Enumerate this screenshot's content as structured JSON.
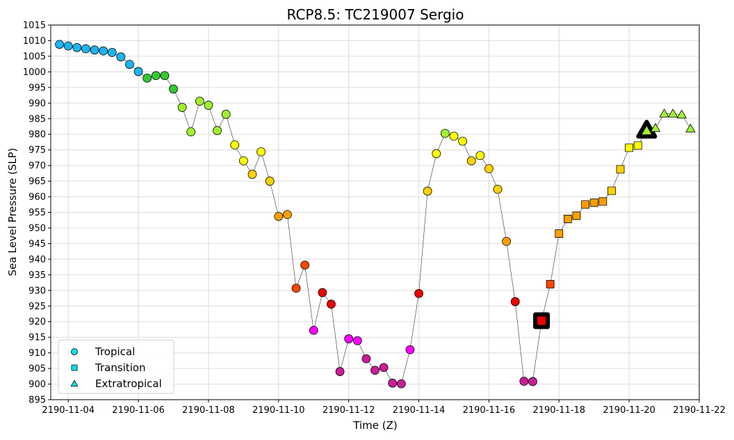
{
  "chart_data": {
    "type": "scatter",
    "title": "RCP8.5: TC219007 Sergio",
    "xlabel": "Time (Z)",
    "ylabel": "Sea Level Pressure (SLP)",
    "x_tick_labels": [
      "2190-11-04",
      "2190-11-06",
      "2190-11-08",
      "2190-11-10",
      "2190-11-12",
      "2190-11-14",
      "2190-11-16",
      "2190-11-18",
      "2190-11-20",
      "2190-11-22"
    ],
    "x_range": [
      "2190-11-03 12:00",
      "2190-11-22 00:00"
    ],
    "ylim": [
      895,
      1015
    ],
    "y_ticks": [
      895,
      900,
      905,
      910,
      915,
      920,
      925,
      930,
      935,
      940,
      945,
      950,
      955,
      960,
      965,
      970,
      975,
      980,
      985,
      990,
      995,
      1000,
      1005,
      1010,
      1015
    ],
    "grid": true,
    "legend": {
      "placement": "lower-left",
      "entries": [
        {
          "label": "Tropical",
          "marker": "circle",
          "color": "#00e5ee"
        },
        {
          "label": "Transition",
          "marker": "square",
          "color": "#00e5ee"
        },
        {
          "label": "Extratropical",
          "marker": "triangle",
          "color": "#00e5ee"
        }
      ]
    },
    "points": [
      {
        "t": "2190-11-03 18:00",
        "slp": 1008.8,
        "phase": "tropical",
        "color": "#1eb4f0"
      },
      {
        "t": "2190-11-04 00:00",
        "slp": 1008.3,
        "phase": "tropical",
        "color": "#1eb4f0"
      },
      {
        "t": "2190-11-04 06:00",
        "slp": 1007.8,
        "phase": "tropical",
        "color": "#1eb4f0"
      },
      {
        "t": "2190-11-04 12:00",
        "slp": 1007.4,
        "phase": "tropical",
        "color": "#1eb4f0"
      },
      {
        "t": "2190-11-04 18:00",
        "slp": 1007.0,
        "phase": "tropical",
        "color": "#1eb4f0"
      },
      {
        "t": "2190-11-05 00:00",
        "slp": 1006.7,
        "phase": "tropical",
        "color": "#1eb4f0"
      },
      {
        "t": "2190-11-05 06:00",
        "slp": 1006.2,
        "phase": "tropical",
        "color": "#1eb4f0"
      },
      {
        "t": "2190-11-05 12:00",
        "slp": 1004.8,
        "phase": "tropical",
        "color": "#1eb4f0"
      },
      {
        "t": "2190-11-05 18:00",
        "slp": 1002.4,
        "phase": "tropical",
        "color": "#1eb4f0"
      },
      {
        "t": "2190-11-06 00:00",
        "slp": 1000.1,
        "phase": "tropical",
        "color": "#1eb4f0"
      },
      {
        "t": "2190-11-06 06:00",
        "slp": 998.0,
        "phase": "tropical",
        "color": "#32c832"
      },
      {
        "t": "2190-11-06 12:00",
        "slp": 998.8,
        "phase": "tropical",
        "color": "#32c832"
      },
      {
        "t": "2190-11-06 18:00",
        "slp": 998.8,
        "phase": "tropical",
        "color": "#32c832"
      },
      {
        "t": "2190-11-07 00:00",
        "slp": 994.5,
        "phase": "tropical",
        "color": "#32c832"
      },
      {
        "t": "2190-11-07 06:00",
        "slp": 988.6,
        "phase": "tropical",
        "color": "#a0f032"
      },
      {
        "t": "2190-11-07 12:00",
        "slp": 980.8,
        "phase": "tropical",
        "color": "#a0f032"
      },
      {
        "t": "2190-11-07 18:00",
        "slp": 990.6,
        "phase": "tropical",
        "color": "#a0f032"
      },
      {
        "t": "2190-11-08 00:00",
        "slp": 989.3,
        "phase": "tropical",
        "color": "#a0f032"
      },
      {
        "t": "2190-11-08 06:00",
        "slp": 981.2,
        "phase": "tropical",
        "color": "#a0f032"
      },
      {
        "t": "2190-11-08 12:00",
        "slp": 986.4,
        "phase": "tropical",
        "color": "#a0f032"
      },
      {
        "t": "2190-11-08 18:00",
        "slp": 976.6,
        "phase": "tropical",
        "color": "#ffff00"
      },
      {
        "t": "2190-11-09 00:00",
        "slp": 971.5,
        "phase": "tropical",
        "color": "#ffff00"
      },
      {
        "t": "2190-11-09 06:00",
        "slp": 967.2,
        "phase": "tropical",
        "color": "#ffd200"
      },
      {
        "t": "2190-11-09 12:00",
        "slp": 974.4,
        "phase": "tropical",
        "color": "#ffff00"
      },
      {
        "t": "2190-11-09 18:00",
        "slp": 965.0,
        "phase": "tropical",
        "color": "#ffd200"
      },
      {
        "t": "2190-11-10 00:00",
        "slp": 953.7,
        "phase": "tropical",
        "color": "#ffa000"
      },
      {
        "t": "2190-11-10 06:00",
        "slp": 954.3,
        "phase": "tropical",
        "color": "#ffa000"
      },
      {
        "t": "2190-11-10 12:00",
        "slp": 930.7,
        "phase": "tropical",
        "color": "#ff4600"
      },
      {
        "t": "2190-11-10 18:00",
        "slp": 938.1,
        "phase": "tropical",
        "color": "#ff4600"
      },
      {
        "t": "2190-11-11 00:00",
        "slp": 917.2,
        "phase": "tropical",
        "color": "#ff00ff"
      },
      {
        "t": "2190-11-11 06:00",
        "slp": 929.3,
        "phase": "tropical",
        "color": "#ee0000"
      },
      {
        "t": "2190-11-11 12:00",
        "slp": 925.6,
        "phase": "tropical",
        "color": "#ee0000"
      },
      {
        "t": "2190-11-11 18:00",
        "slp": 904.0,
        "phase": "tropical",
        "color": "#c81e96"
      },
      {
        "t": "2190-11-12 00:00",
        "slp": 914.5,
        "phase": "tropical",
        "color": "#ff00ff"
      },
      {
        "t": "2190-11-12 06:00",
        "slp": 913.9,
        "phase": "tropical",
        "color": "#ff00ff"
      },
      {
        "t": "2190-11-12 12:00",
        "slp": 908.1,
        "phase": "tropical",
        "color": "#c81e96"
      },
      {
        "t": "2190-11-12 18:00",
        "slp": 904.4,
        "phase": "tropical",
        "color": "#c81e96"
      },
      {
        "t": "2190-11-13 00:00",
        "slp": 905.3,
        "phase": "tropical",
        "color": "#c81e96"
      },
      {
        "t": "2190-11-13 06:00",
        "slp": 900.3,
        "phase": "tropical",
        "color": "#c81e96"
      },
      {
        "t": "2190-11-13 12:00",
        "slp": 900.1,
        "phase": "tropical",
        "color": "#c81e96"
      },
      {
        "t": "2190-11-13 18:00",
        "slp": 911.0,
        "phase": "tropical",
        "color": "#ff00ff"
      },
      {
        "t": "2190-11-14 00:00",
        "slp": 929.0,
        "phase": "tropical",
        "color": "#ee0000"
      },
      {
        "t": "2190-11-14 06:00",
        "slp": 961.8,
        "phase": "tropical",
        "color": "#ffd200"
      },
      {
        "t": "2190-11-14 12:00",
        "slp": 973.8,
        "phase": "tropical",
        "color": "#ffff00"
      },
      {
        "t": "2190-11-14 18:00",
        "slp": 980.3,
        "phase": "tropical",
        "color": "#a0f032"
      },
      {
        "t": "2190-11-15 00:00",
        "slp": 979.4,
        "phase": "tropical",
        "color": "#ffff00"
      },
      {
        "t": "2190-11-15 06:00",
        "slp": 977.8,
        "phase": "tropical",
        "color": "#ffff00"
      },
      {
        "t": "2190-11-15 12:00",
        "slp": 971.5,
        "phase": "tropical",
        "color": "#ffd200"
      },
      {
        "t": "2190-11-15 18:00",
        "slp": 973.2,
        "phase": "tropical",
        "color": "#ffff00"
      },
      {
        "t": "2190-11-16 00:00",
        "slp": 969.0,
        "phase": "tropical",
        "color": "#ffd200"
      },
      {
        "t": "2190-11-16 06:00",
        "slp": 962.4,
        "phase": "tropical",
        "color": "#ffd200"
      },
      {
        "t": "2190-11-16 12:00",
        "slp": 945.7,
        "phase": "tropical",
        "color": "#ffa000"
      },
      {
        "t": "2190-11-16 18:00",
        "slp": 926.4,
        "phase": "tropical",
        "color": "#ee0000"
      },
      {
        "t": "2190-11-17 00:00",
        "slp": 900.9,
        "phase": "tropical",
        "color": "#c81e96"
      },
      {
        "t": "2190-11-17 06:00",
        "slp": 900.8,
        "phase": "tropical",
        "color": "#c81e96"
      },
      {
        "t": "2190-11-17 12:00",
        "slp": 920.3,
        "phase": "transition",
        "color": "#ee0000",
        "highlight": true
      },
      {
        "t": "2190-11-17 18:00",
        "slp": 932.0,
        "phase": "transition",
        "color": "#ff4600"
      },
      {
        "t": "2190-11-18 00:00",
        "slp": 948.2,
        "phase": "transition",
        "color": "#ffa000"
      },
      {
        "t": "2190-11-18 06:00",
        "slp": 952.9,
        "phase": "transition",
        "color": "#ffa000"
      },
      {
        "t": "2190-11-18 12:00",
        "slp": 953.9,
        "phase": "transition",
        "color": "#ffa000"
      },
      {
        "t": "2190-11-18 18:00",
        "slp": 957.5,
        "phase": "transition",
        "color": "#ffa000"
      },
      {
        "t": "2190-11-19 00:00",
        "slp": 958.1,
        "phase": "transition",
        "color": "#ffa000"
      },
      {
        "t": "2190-11-19 06:00",
        "slp": 958.5,
        "phase": "transition",
        "color": "#ffa000"
      },
      {
        "t": "2190-11-19 12:00",
        "slp": 961.9,
        "phase": "transition",
        "color": "#ffd200"
      },
      {
        "t": "2190-11-19 18:00",
        "slp": 968.8,
        "phase": "transition",
        "color": "#ffd200"
      },
      {
        "t": "2190-11-20 00:00",
        "slp": 975.7,
        "phase": "transition",
        "color": "#ffff00"
      },
      {
        "t": "2190-11-20 06:00",
        "slp": 976.4,
        "phase": "transition",
        "color": "#ffff00"
      },
      {
        "t": "2190-11-20 12:00",
        "slp": 981.3,
        "phase": "extratropical",
        "color": "#a0f032",
        "highlight": true
      },
      {
        "t": "2190-11-20 18:00",
        "slp": 982.0,
        "phase": "extratropical",
        "color": "#a0f032"
      },
      {
        "t": "2190-11-21 00:00",
        "slp": 986.6,
        "phase": "extratropical",
        "color": "#a0f032"
      },
      {
        "t": "2190-11-21 06:00",
        "slp": 986.6,
        "phase": "extratropical",
        "color": "#a0f032"
      },
      {
        "t": "2190-11-21 12:00",
        "slp": 986.3,
        "phase": "extratropical",
        "color": "#a0f032"
      },
      {
        "t": "2190-11-21 18:00",
        "slp": 981.8,
        "phase": "extratropical",
        "color": "#a0f032"
      }
    ]
  }
}
